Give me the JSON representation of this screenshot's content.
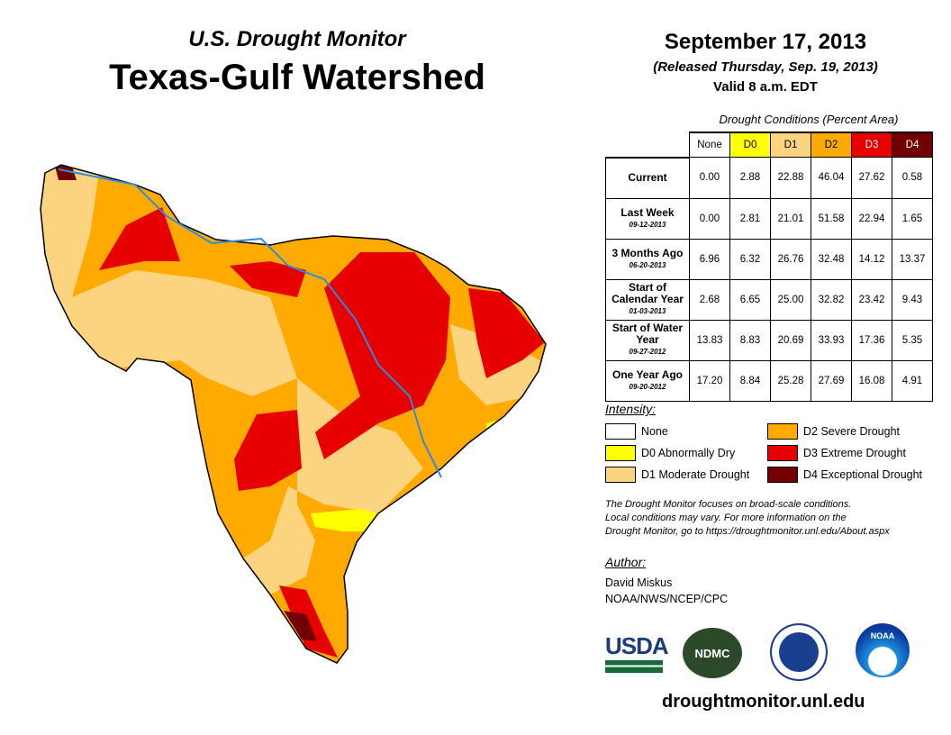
{
  "header": {
    "subtitle": "U.S. Drought Monitor",
    "title": "Texas-Gulf Watershed",
    "date": "September 17, 2013",
    "released": "(Released Thursday, Sep. 19, 2013)",
    "valid": "Valid 8 a.m. EDT"
  },
  "table": {
    "caption": "Drought Conditions (Percent Area)",
    "columns": [
      "None",
      "D0",
      "D1",
      "D2",
      "D3",
      "D4"
    ],
    "column_colors": [
      "#ffffff",
      "#ffff00",
      "#fcd37f",
      "#ffaa00",
      "#e60000",
      "#730000"
    ],
    "rows": [
      {
        "label": "Current",
        "date": "",
        "values": [
          "0.00",
          "2.88",
          "22.88",
          "46.04",
          "27.62",
          "0.58"
        ]
      },
      {
        "label": "Last Week",
        "date": "09-12-2013",
        "values": [
          "0.00",
          "2.81",
          "21.01",
          "51.58",
          "22.94",
          "1.65"
        ]
      },
      {
        "label": "3 Months Ago",
        "date": "06-20-2013",
        "values": [
          "6.96",
          "6.32",
          "26.76",
          "32.48",
          "14.12",
          "13.37"
        ]
      },
      {
        "label": "Start of Calendar Year",
        "date": "01-03-2013",
        "values": [
          "2.68",
          "6.65",
          "25.00",
          "32.82",
          "23.42",
          "9.43"
        ]
      },
      {
        "label": "Start of Water Year",
        "date": "09-27-2012",
        "values": [
          "13.83",
          "8.83",
          "20.69",
          "33.93",
          "17.36",
          "5.35"
        ]
      },
      {
        "label": "One Year Ago",
        "date": "09-20-2012",
        "values": [
          "17.20",
          "8.84",
          "25.28",
          "27.69",
          "16.08",
          "4.91"
        ]
      }
    ]
  },
  "legend": {
    "title": "Intensity:",
    "items": [
      {
        "label": "None",
        "color": "#ffffff"
      },
      {
        "label": "D0 Abnormally Dry",
        "color": "#ffff00"
      },
      {
        "label": "D1 Moderate Drought",
        "color": "#fcd37f"
      },
      {
        "label": "D2 Severe Drought",
        "color": "#ffaa00"
      },
      {
        "label": "D3 Extreme Drought",
        "color": "#e60000"
      },
      {
        "label": "D4 Exceptional Drought",
        "color": "#730000"
      }
    ]
  },
  "note": [
    "The Drought Monitor focuses on broad-scale conditions.",
    "Local conditions may vary. For more information on the",
    "Drought Monitor, go to https://droughtmonitor.unl.edu/About.aspx"
  ],
  "author": {
    "heading": "Author:",
    "name": "David Miskus",
    "org": "NOAA/NWS/NCEP/CPC"
  },
  "logos": {
    "usda": "USDA",
    "ndmc": "NDMC",
    "noaa": "NOAA"
  },
  "url": "droughtmonitor.unl.edu"
}
